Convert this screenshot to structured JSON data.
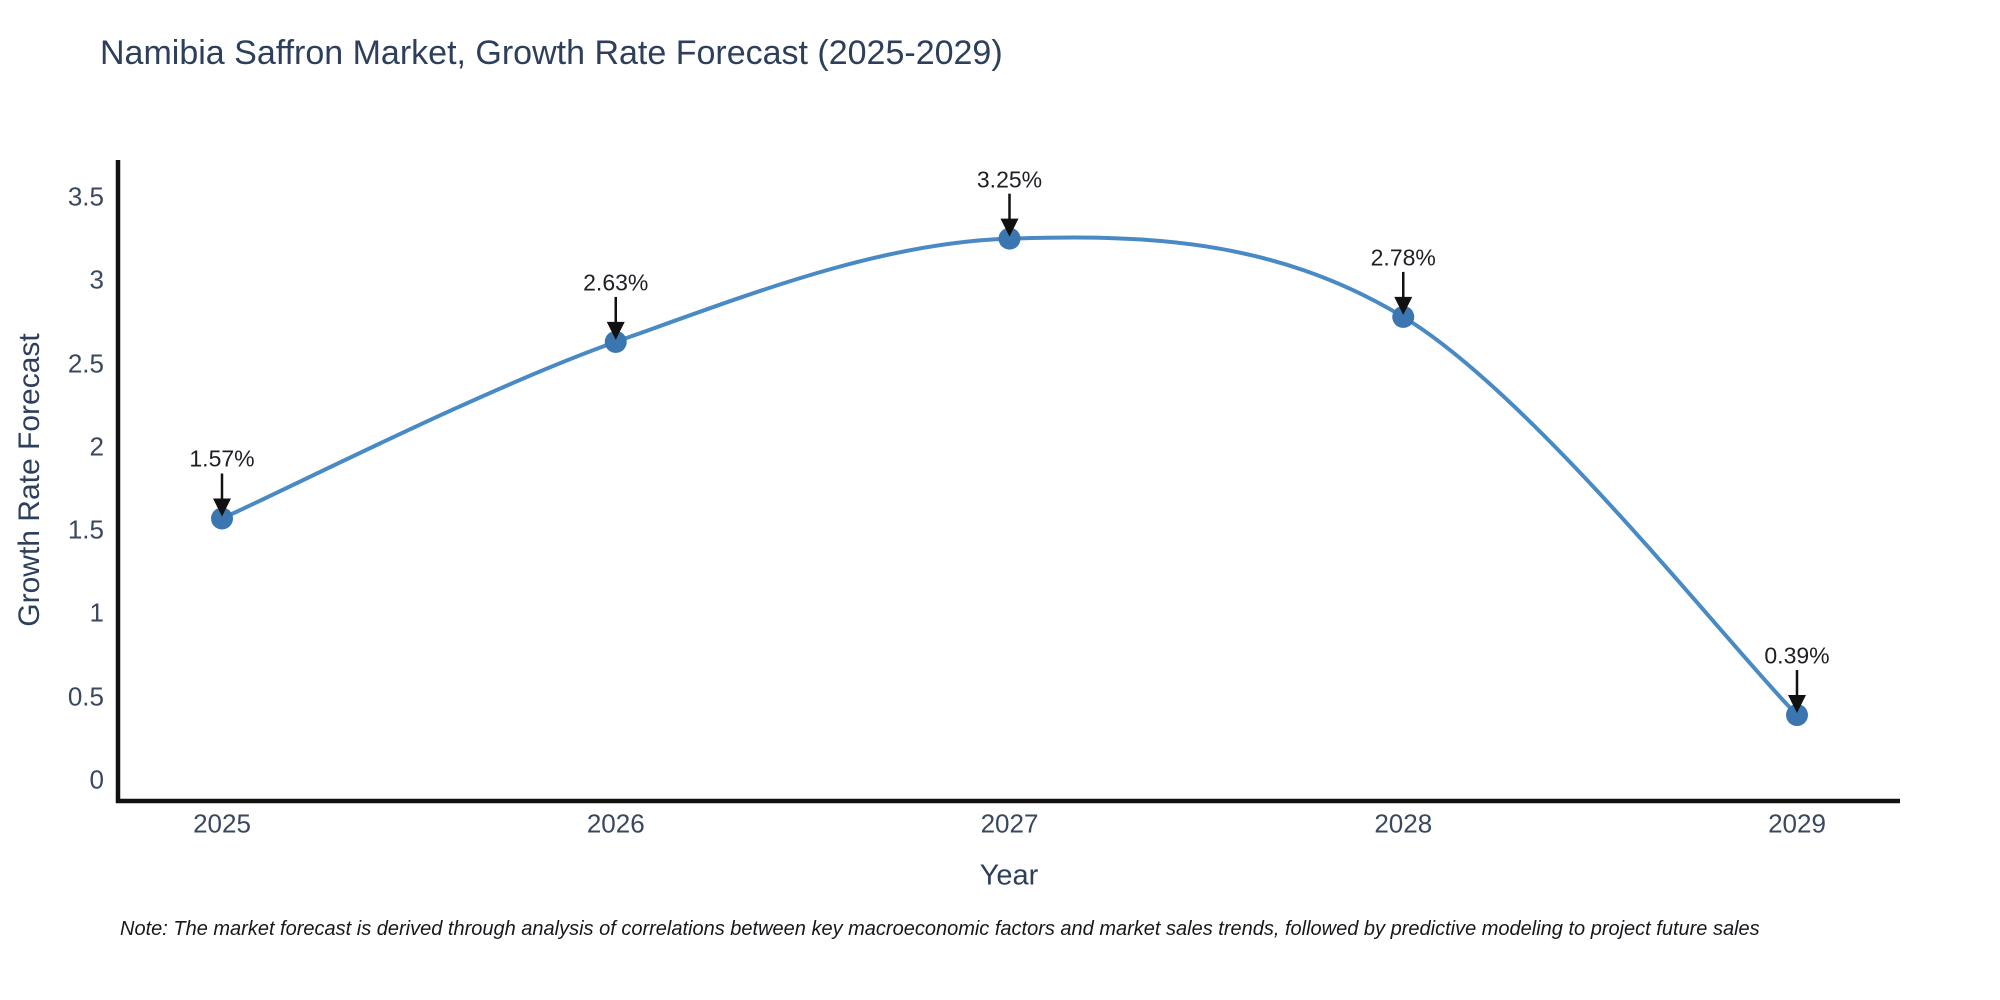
{
  "chart_data": {
    "type": "line",
    "title": "Namibia Saffron Market, Growth Rate Forecast (2025-2029)",
    "xlabel": "Year",
    "ylabel": "Growth Rate Forecast",
    "x": [
      "2025",
      "2026",
      "2027",
      "2028",
      "2029"
    ],
    "series": [
      {
        "name": "Growth Rate Forecast",
        "values": [
          1.57,
          2.63,
          3.25,
          2.78,
          0.39
        ]
      }
    ],
    "point_labels": [
      "1.57%",
      "2.63%",
      "3.25%",
      "2.78%",
      "0.39%"
    ],
    "ytick_labels": [
      "0",
      "0.5",
      "1",
      "1.5",
      "2",
      "2.5",
      "3",
      "3.5"
    ],
    "yticks": [
      0,
      0.5,
      1,
      1.5,
      2,
      2.5,
      3,
      3.5
    ],
    "ylim": [
      -0.13,
      3.72
    ],
    "line_shape": "spline",
    "grid": false,
    "legend": "none",
    "colors": {
      "line": "#4a8ac4",
      "marker": "#3b76b0",
      "arrow": "#111111",
      "axis": "#111111",
      "title_text": "#2e3f5c",
      "tick_text": "#39485e"
    }
  },
  "note": "Note: The market forecast is derived through analysis of correlations between key macroeconomic factors and market sales trends, followed by predictive modeling to project future sales"
}
